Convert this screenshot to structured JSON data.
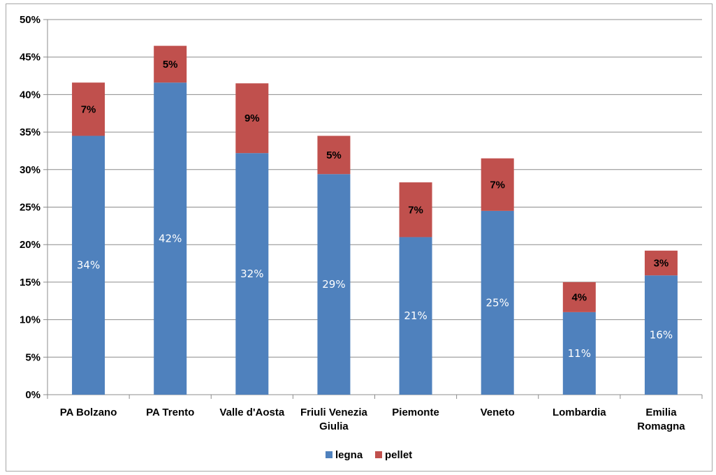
{
  "chart_data": {
    "type": "bar",
    "stacked": true,
    "categories": [
      "PA Bolzano",
      "PA Trento",
      "Valle d'Aosta",
      "Friuli Venezia Giulia",
      "Piemonte",
      "Veneto",
      "Lombardia",
      "Emilia Romagna"
    ],
    "category_lines": [
      [
        "PA Bolzano"
      ],
      [
        "PA Trento"
      ],
      [
        "Valle d'Aosta"
      ],
      [
        "Friuli Venezia",
        "Giulia"
      ],
      [
        "Piemonte"
      ],
      [
        "Veneto"
      ],
      [
        "Lombardia"
      ],
      [
        "Emilia",
        "Romagna"
      ]
    ],
    "series": [
      {
        "name": "legna",
        "color": "#4f81bd",
        "values": [
          34.5,
          41.6,
          32.2,
          29.4,
          21.0,
          24.5,
          11.0,
          15.9
        ],
        "labels": [
          "34%",
          "42%",
          "32%",
          "29%",
          "21%",
          "25%",
          "11%",
          "16%"
        ]
      },
      {
        "name": "pellet",
        "color": "#c0504d",
        "values": [
          7.1,
          4.9,
          9.3,
          5.1,
          7.3,
          7.0,
          4.0,
          3.3
        ],
        "labels": [
          "7%",
          "5%",
          "9%",
          "5%",
          "7%",
          "7%",
          "4%",
          "3%"
        ]
      }
    ],
    "y_ticks": [
      "0%",
      "5%",
      "10%",
      "15%",
      "20%",
      "25%",
      "30%",
      "35%",
      "40%",
      "45%",
      "50%"
    ],
    "ylim": [
      0,
      50
    ],
    "grid": true,
    "legend_position": "bottom",
    "title": "",
    "xlabel": "",
    "ylabel": ""
  }
}
